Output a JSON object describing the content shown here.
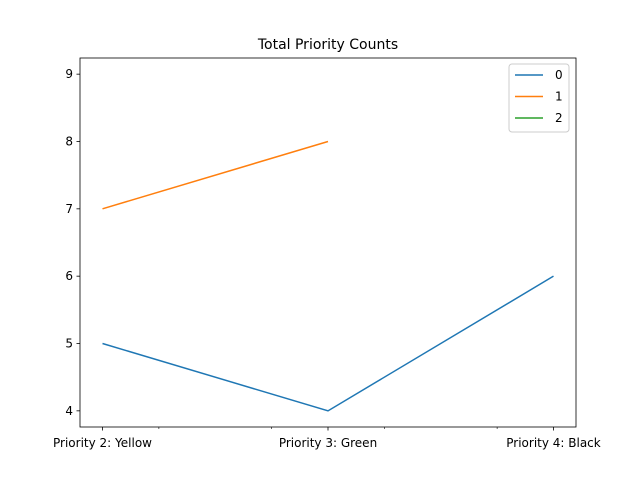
{
  "chart_data": {
    "type": "line",
    "title": "Total Priority Counts",
    "xlabel": "",
    "ylabel": "",
    "categories": [
      "Priority 2: Yellow",
      "Priority 3: Green",
      "Priority 4: Black"
    ],
    "ylim": [
      3.76,
      9.24
    ],
    "yticks": [
      4,
      5,
      6,
      7,
      8,
      9
    ],
    "grid": false,
    "legend_position": "top-right",
    "series": [
      {
        "name": "0",
        "color": "#1f77b4",
        "values": [
          5,
          4,
          6
        ]
      },
      {
        "name": "1",
        "color": "#ff7f0e",
        "values": [
          7,
          8,
          null
        ]
      },
      {
        "name": "2",
        "color": "#2ca02c",
        "values": [
          null,
          null,
          null
        ]
      }
    ]
  }
}
